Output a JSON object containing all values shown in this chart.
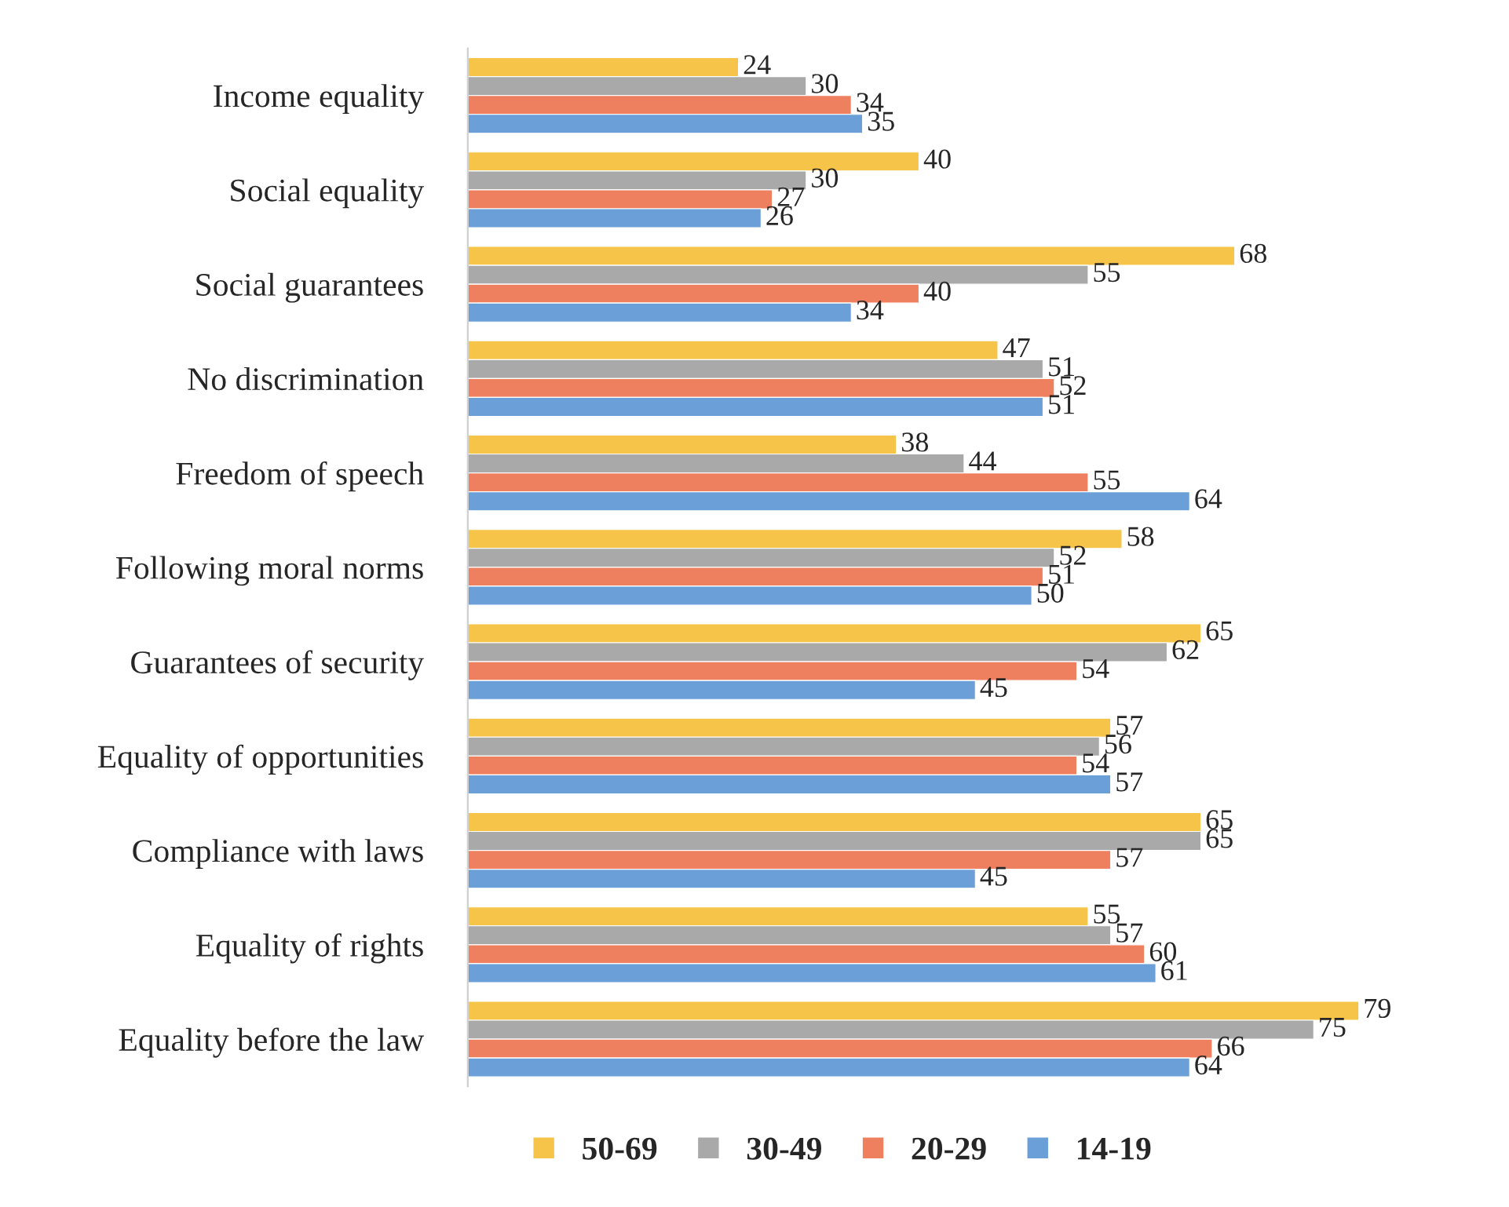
{
  "chart_data": {
    "type": "bar",
    "orientation": "horizontal",
    "data_labels": true,
    "grid": false,
    "legend": "bottom",
    "categories": [
      "Income equality",
      "Social equality",
      "Social guarantees",
      "No discrimination",
      "Freedom of speech",
      "Following moral norms",
      "Guarantees of security",
      "Equality of opportunities",
      "Compliance with laws",
      "Equality of rights",
      "Equality before the law"
    ],
    "series": [
      {
        "name": "50-69",
        "color": "#f7c44a",
        "values": [
          24,
          40,
          68,
          47,
          38,
          58,
          65,
          57,
          65,
          55,
          79
        ]
      },
      {
        "name": "30-49",
        "color": "#a9a9a9",
        "values": [
          30,
          30,
          55,
          51,
          44,
          52,
          62,
          56,
          65,
          57,
          75
        ]
      },
      {
        "name": "20-29",
        "color": "#ee8060",
        "values": [
          34,
          27,
          40,
          52,
          55,
          51,
          54,
          54,
          57,
          60,
          66
        ]
      },
      {
        "name": "14-19",
        "color": "#6a9fd8",
        "values": [
          35,
          26,
          34,
          51,
          64,
          50,
          45,
          57,
          45,
          61,
          64
        ]
      }
    ]
  }
}
